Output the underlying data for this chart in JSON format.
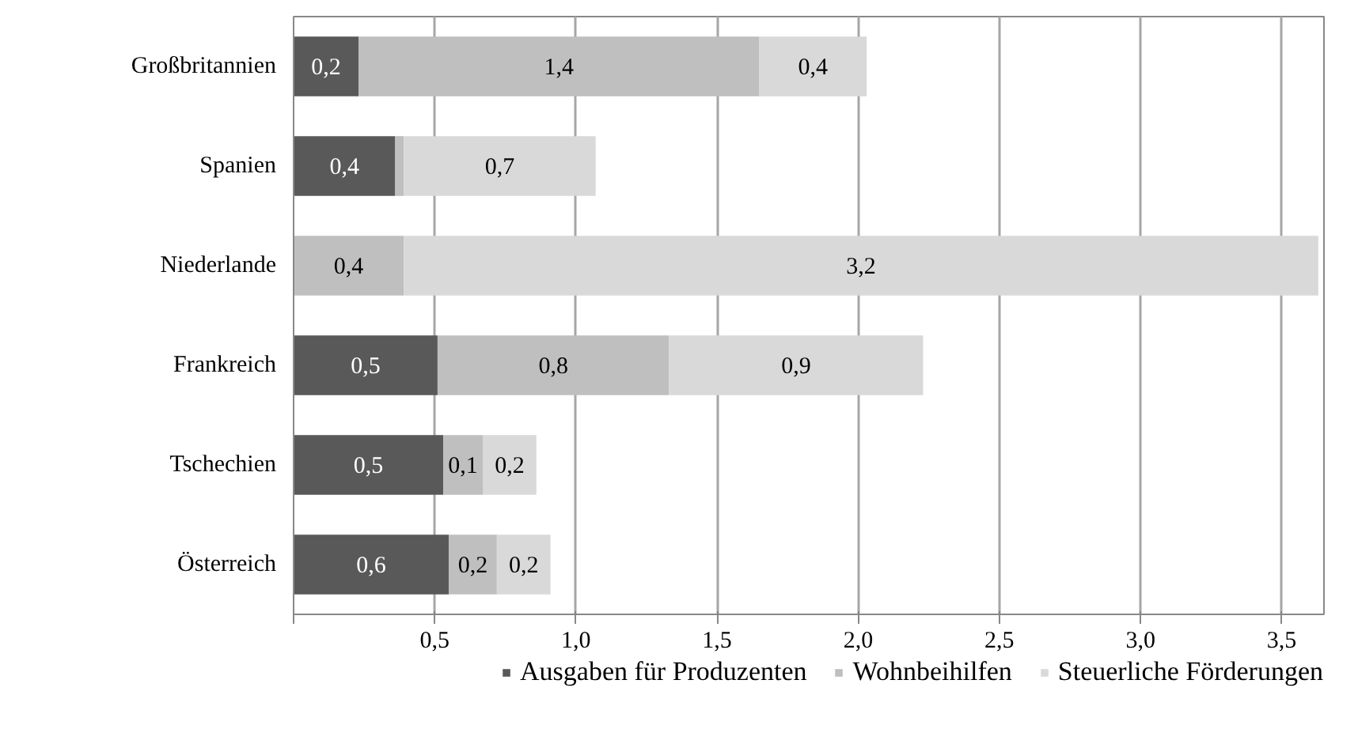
{
  "chart_data": {
    "type": "bar",
    "orientation": "horizontal",
    "stacked": true,
    "categories": [
      "Großbritannien",
      "Spanien",
      "Niederlande",
      "Frankreich",
      "Tschechien",
      "Österreich"
    ],
    "series": [
      {
        "name": "Ausgaben für Produzenten",
        "color": "#595959",
        "values": [
          0.23,
          0.36,
          0,
          0.51,
          0.53,
          0.55
        ],
        "value_labels": [
          "0,2",
          "0,4",
          null,
          "0,5",
          "0,5",
          "0,6"
        ]
      },
      {
        "name": "Wohnbeihilfen",
        "color": "#bfbfbf",
        "values": [
          1.42,
          0.03,
          0.39,
          0.82,
          0.14,
          0.17
        ],
        "value_labels": [
          "1,4",
          null,
          "0,4",
          "0,8",
          "0,1",
          "0,2"
        ]
      },
      {
        "name": "Steuerliche Förderungen",
        "color": "#d9d9d9",
        "values": [
          0.38,
          0.68,
          3.24,
          0.9,
          0.19,
          0.19
        ],
        "value_labels": [
          "0,4",
          "0,7",
          "3,2",
          "0,9",
          "0,2",
          "0,2"
        ]
      }
    ],
    "xlim": [
      0,
      3.65
    ],
    "xticks": [
      {
        "value": 0,
        "label": null
      },
      {
        "value": 0.5,
        "label": "0,5"
      },
      {
        "value": 1.0,
        "label": "1,0"
      },
      {
        "value": 1.5,
        "label": "1,5"
      },
      {
        "value": 2.0,
        "label": "2,0"
      },
      {
        "value": 2.5,
        "label": "2,5"
      },
      {
        "value": 3.0,
        "label": "3,0"
      },
      {
        "value": 3.5,
        "label": "3,5"
      }
    ],
    "grid": "x",
    "legend": "bottom"
  }
}
